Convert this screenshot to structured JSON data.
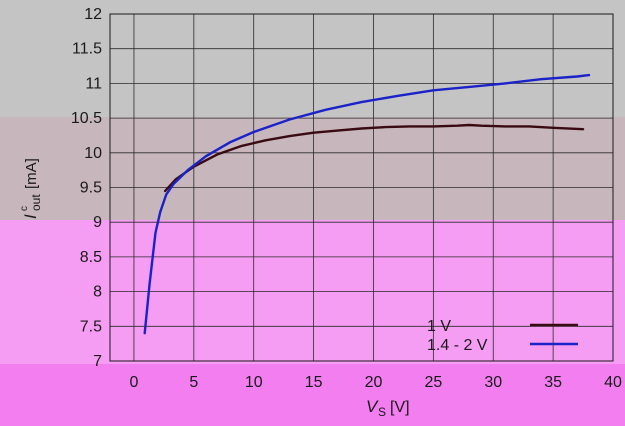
{
  "chart_data": {
    "type": "line",
    "xlabel_main": "V",
    "xlabel_sub": "S",
    "xlabel_unit": "[V]",
    "ylabel_main": "I",
    "ylabel_sub": "out",
    "ylabel_sup": "c",
    "ylabel_unit": "[mA]",
    "xlim": [
      -2,
      40
    ],
    "ylim": [
      7,
      12
    ],
    "x_ticks": [
      0,
      5,
      10,
      15,
      20,
      25,
      30,
      35,
      40
    ],
    "y_ticks": [
      7,
      7.5,
      8,
      8.5,
      9,
      9.5,
      10,
      10.5,
      11,
      11.5,
      12
    ],
    "x_tick_labels": [
      "0",
      "5",
      "10",
      "15",
      "20",
      "25",
      "30",
      "35",
      "40"
    ],
    "y_tick_labels": [
      "7",
      "7.5",
      "8",
      "8.5",
      "9",
      "9.5",
      "10",
      "10.5",
      "11",
      "11.5",
      "12"
    ],
    "grid": true,
    "legend_placement": "bottom-right",
    "series": [
      {
        "name": "1 V",
        "color": "#3a0a12",
        "x": [
          2.6,
          3.5,
          5,
          7,
          9,
          11,
          13,
          15,
          17,
          19,
          21,
          23,
          25,
          27,
          28,
          29,
          31,
          33,
          35,
          37.5
        ],
        "y": [
          9.45,
          9.62,
          9.8,
          9.98,
          10.1,
          10.18,
          10.24,
          10.29,
          10.32,
          10.35,
          10.37,
          10.38,
          10.38,
          10.39,
          10.4,
          10.39,
          10.38,
          10.38,
          10.36,
          10.34
        ]
      },
      {
        "name": "1.4 - 2 V",
        "color": "#1a22c8",
        "x": [
          0.9,
          1.3,
          1.8,
          2.2,
          2.7,
          3.3,
          4.5,
          6,
          8,
          10,
          13,
          16,
          19,
          22,
          25,
          28,
          31,
          34,
          37,
          38
        ],
        "y": [
          7.4,
          8.1,
          8.85,
          9.15,
          9.4,
          9.55,
          9.75,
          9.95,
          10.15,
          10.3,
          10.48,
          10.62,
          10.73,
          10.82,
          10.9,
          10.95,
          11.0,
          11.06,
          11.1,
          11.12
        ]
      }
    ]
  }
}
